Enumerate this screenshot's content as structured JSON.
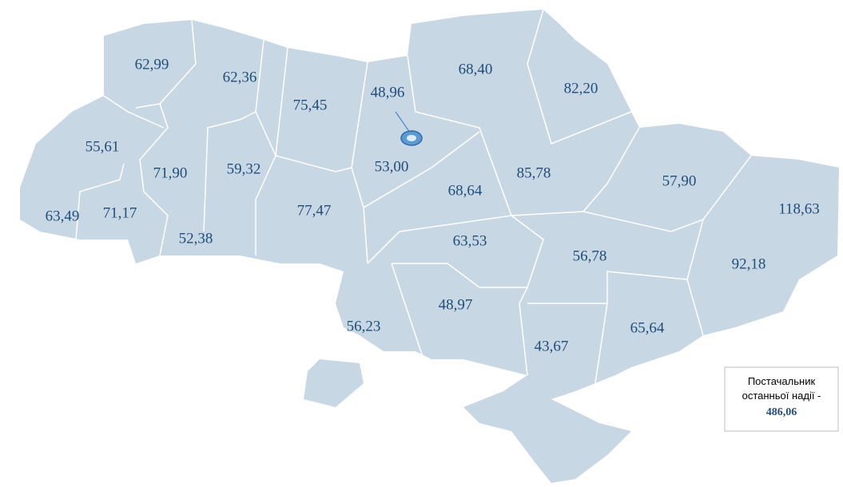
{
  "regions": [
    {
      "label": "62,99"
    },
    {
      "label": "62,36"
    },
    {
      "label": "75,45"
    },
    {
      "label": "48,96"
    },
    {
      "label": "68,40"
    },
    {
      "label": "82,20"
    },
    {
      "label": "55,61"
    },
    {
      "label": "71,90"
    },
    {
      "label": "59,32"
    },
    {
      "label": "53,00"
    },
    {
      "label": "68,64"
    },
    {
      "label": "85,78"
    },
    {
      "label": "57,90"
    },
    {
      "label": "118,63"
    },
    {
      "label": "63,49"
    },
    {
      "label": "71,17"
    },
    {
      "label": "52,38"
    },
    {
      "label": "77,47"
    },
    {
      "label": "63,53"
    },
    {
      "label": "56,78"
    },
    {
      "label": "92,18"
    },
    {
      "label": "48,97"
    },
    {
      "label": "56,23"
    },
    {
      "label": "65,64"
    },
    {
      "label": "43,67"
    }
  ],
  "legend": {
    "lines": [
      "Постачальник",
      "останньої надії -"
    ],
    "value": "486,06"
  }
}
